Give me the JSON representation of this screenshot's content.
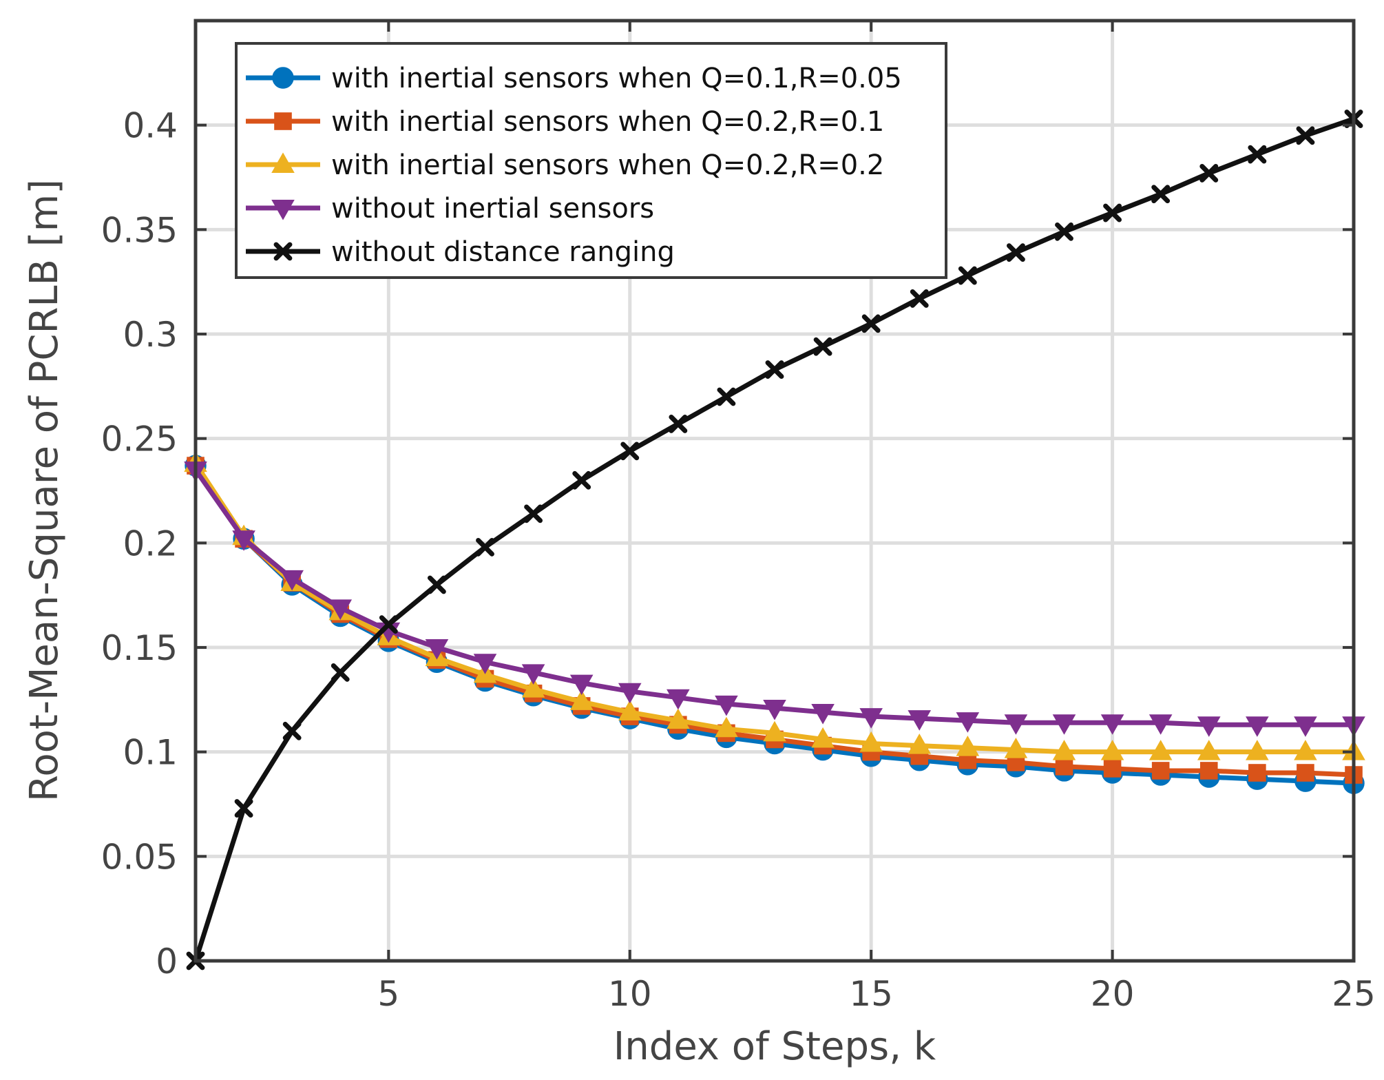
{
  "chart_data": {
    "type": "line",
    "title": "",
    "xlabel": "Index of Steps, k",
    "ylabel": "Root-Mean-Square of PCRLB [m]",
    "xlim": [
      1,
      25
    ],
    "ylim": [
      0,
      0.45
    ],
    "xticks": [
      5,
      10,
      15,
      20,
      25
    ],
    "xtick_labels": [
      "5",
      "10",
      "15",
      "20",
      "25"
    ],
    "yticks": [
      0,
      0.05,
      0.1,
      0.15,
      0.2,
      0.25,
      0.3,
      0.35,
      0.4
    ],
    "ytick_labels": [
      "0",
      "0.05",
      "0.1",
      "0.15",
      "0.2",
      "0.25",
      "0.3",
      "0.35",
      "0.4"
    ],
    "grid": true,
    "legend_position": "top-left",
    "x": [
      1,
      2,
      3,
      4,
      5,
      6,
      7,
      8,
      9,
      10,
      11,
      12,
      13,
      14,
      15,
      16,
      17,
      18,
      19,
      20,
      21,
      22,
      23,
      24,
      25
    ],
    "series": [
      {
        "name": "with inertial sensors when  Q=0.1,R=0.05",
        "color": "#0072BD",
        "marker": "circle",
        "values": [
          0.237,
          0.202,
          0.18,
          0.165,
          0.153,
          0.143,
          0.134,
          0.127,
          0.121,
          0.116,
          0.111,
          0.107,
          0.104,
          0.101,
          0.098,
          0.096,
          0.094,
          0.093,
          0.091,
          0.09,
          0.089,
          0.088,
          0.087,
          0.086,
          0.085
        ]
      },
      {
        "name": "with inertial sensors when  Q=0.2,R=0.1",
        "color": "#D95319",
        "marker": "square",
        "values": [
          0.237,
          0.202,
          0.181,
          0.166,
          0.154,
          0.144,
          0.135,
          0.128,
          0.122,
          0.117,
          0.113,
          0.109,
          0.106,
          0.103,
          0.1,
          0.098,
          0.096,
          0.095,
          0.093,
          0.092,
          0.091,
          0.091,
          0.09,
          0.09,
          0.089
        ]
      },
      {
        "name": "with inertial sensors when  Q=0.2,R=0.2",
        "color": "#EDB120",
        "marker": "triangle-up",
        "values": [
          0.238,
          0.203,
          0.181,
          0.167,
          0.155,
          0.145,
          0.137,
          0.13,
          0.124,
          0.119,
          0.115,
          0.111,
          0.109,
          0.106,
          0.104,
          0.103,
          0.102,
          0.101,
          0.1,
          0.1,
          0.1,
          0.1,
          0.1,
          0.1,
          0.1
        ]
      },
      {
        "name": "without inertial sensors",
        "color": "#7E2F8E",
        "marker": "triangle-down",
        "values": [
          0.235,
          0.202,
          0.183,
          0.169,
          0.158,
          0.15,
          0.143,
          0.138,
          0.133,
          0.129,
          0.126,
          0.123,
          0.121,
          0.119,
          0.117,
          0.116,
          0.115,
          0.114,
          0.114,
          0.114,
          0.114,
          0.113,
          0.113,
          0.113,
          0.113
        ]
      },
      {
        "name": "without distance ranging",
        "color": "#111111",
        "marker": "x",
        "values": [
          0.0,
          0.073,
          0.11,
          0.138,
          0.161,
          0.18,
          0.198,
          0.214,
          0.23,
          0.244,
          0.257,
          0.27,
          0.283,
          0.294,
          0.305,
          0.317,
          0.328,
          0.339,
          0.349,
          0.358,
          0.367,
          0.377,
          0.386,
          0.395,
          0.403
        ]
      }
    ]
  }
}
